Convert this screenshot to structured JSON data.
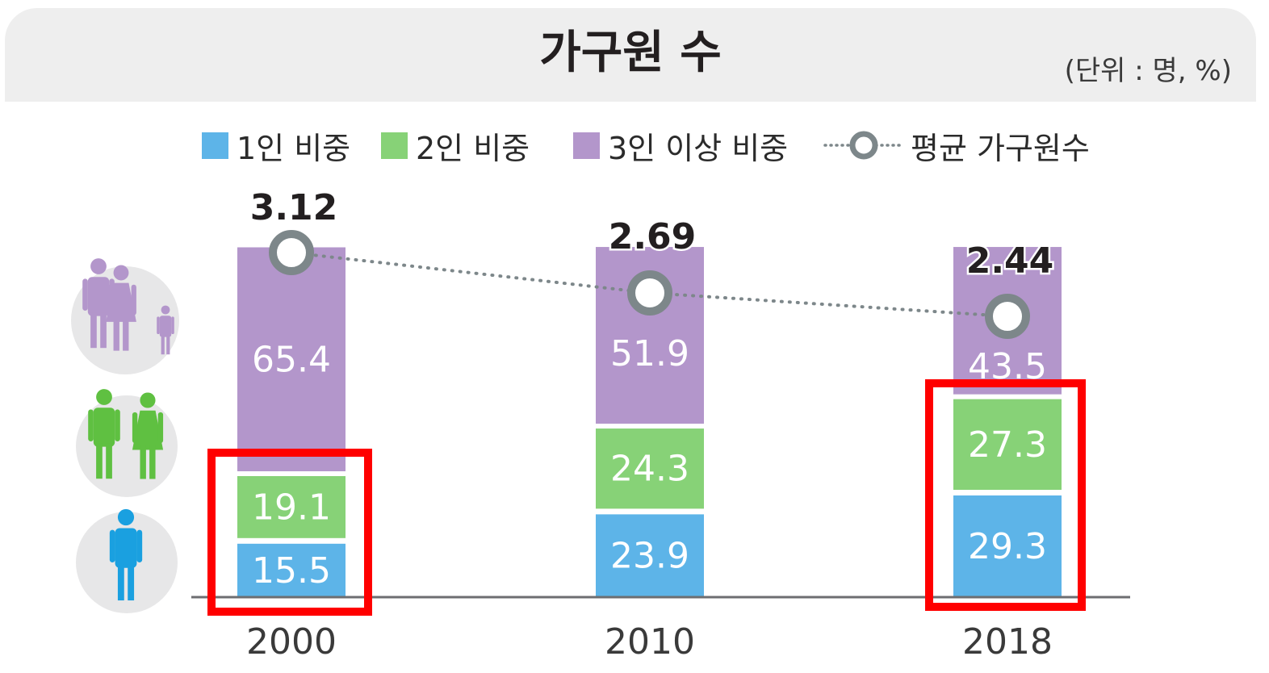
{
  "header": {
    "title": "가구원 수",
    "unit": "(단위 : 명, %)"
  },
  "legend": [
    {
      "label": "1인 비중",
      "color": "#5db4e8",
      "kind": "swatch"
    },
    {
      "label": "2인 비중",
      "color": "#87d277",
      "kind": "swatch"
    },
    {
      "label": "3인 이상 비중",
      "color": "#b396cb",
      "kind": "swatch"
    },
    {
      "label": "평균 가구원수",
      "color": "#7d878a",
      "kind": "line-marker"
    }
  ],
  "icons": [
    {
      "name": "family-icon",
      "color": "#b396cb"
    },
    {
      "name": "couple-icon",
      "color": "#5fc041"
    },
    {
      "name": "single-person-icon",
      "color": "#1aa0e0"
    }
  ],
  "chart_data": {
    "type": "bar",
    "stacked": true,
    "categories": [
      "2000",
      "2010",
      "2018"
    ],
    "ylim": [
      0,
      100
    ],
    "series": [
      {
        "name": "1인 비중",
        "color": "#5db4e8",
        "values": [
          15.5,
          23.9,
          29.3
        ]
      },
      {
        "name": "2인 비중",
        "color": "#87d277",
        "values": [
          19.1,
          24.3,
          27.3
        ]
      },
      {
        "name": "3인 이상 비중",
        "color": "#b396cb",
        "values": [
          65.4,
          51.9,
          43.5
        ]
      }
    ],
    "line_series": {
      "name": "평균 가구원수",
      "color": "#7d878a",
      "values": [
        3.12,
        2.69,
        2.44
      ],
      "labels": [
        "3.12",
        "2.69",
        "2.44"
      ]
    },
    "highlight_color": "#ff0000",
    "highlights": [
      {
        "category": "2000",
        "series": [
          "1인 비중",
          "2인 비중"
        ]
      },
      {
        "category": "2018",
        "series": [
          "1인 비중",
          "2인 비중"
        ]
      }
    ]
  }
}
